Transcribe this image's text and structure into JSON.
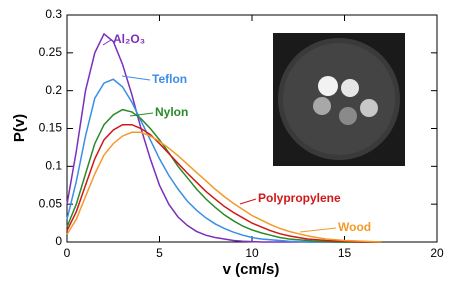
{
  "chart_data": {
    "type": "line",
    "xlabel": "v (cm/s)",
    "ylabel": "P(v)",
    "x": [
      0,
      0.5,
      1,
      1.5,
      2,
      2.5,
      3,
      3.5,
      4,
      4.5,
      5,
      5.5,
      6,
      6.5,
      7,
      7.5,
      8,
      8.5,
      9,
      9.5,
      10,
      10.5,
      11,
      11.5,
      12,
      12.5,
      13,
      13.5,
      14,
      14.5,
      15,
      15.5,
      16,
      16.5,
      17
    ],
    "series": [
      {
        "name": "Al₂O₃",
        "color": "#7b2fbe",
        "values": [
          0.05,
          0.12,
          0.2,
          0.25,
          0.275,
          0.265,
          0.235,
          0.195,
          0.15,
          0.11,
          0.075,
          0.05,
          0.033,
          0.022,
          0.014,
          0.009,
          0.006,
          0.004,
          0.002,
          0.001,
          0.0005,
          0,
          0,
          0,
          0,
          0,
          0,
          0,
          0,
          0,
          0,
          0,
          0,
          0,
          0
        ]
      },
      {
        "name": "Teflon",
        "color": "#3a8ee6",
        "values": [
          0.03,
          0.08,
          0.14,
          0.19,
          0.21,
          0.215,
          0.205,
          0.185,
          0.16,
          0.135,
          0.11,
          0.088,
          0.07,
          0.054,
          0.042,
          0.032,
          0.024,
          0.018,
          0.013,
          0.009,
          0.006,
          0.004,
          0.003,
          0.002,
          0.001,
          0.0005,
          0,
          0,
          0,
          0,
          0,
          0,
          0,
          0,
          0
        ]
      },
      {
        "name": "Nylon",
        "color": "#2a8a2a",
        "values": [
          0.02,
          0.05,
          0.09,
          0.13,
          0.155,
          0.168,
          0.175,
          0.172,
          0.163,
          0.15,
          0.135,
          0.118,
          0.1,
          0.085,
          0.07,
          0.057,
          0.046,
          0.036,
          0.028,
          0.021,
          0.016,
          0.012,
          0.009,
          0.006,
          0.004,
          0.003,
          0.002,
          0.001,
          0.0005,
          0,
          0,
          0,
          0,
          0,
          0
        ]
      },
      {
        "name": "Polypropylene",
        "color": "#d01818",
        "values": [
          0.015,
          0.04,
          0.075,
          0.11,
          0.135,
          0.148,
          0.155,
          0.155,
          0.15,
          0.142,
          0.13,
          0.117,
          0.104,
          0.091,
          0.079,
          0.067,
          0.057,
          0.047,
          0.039,
          0.032,
          0.025,
          0.02,
          0.015,
          0.011,
          0.008,
          0.006,
          0.004,
          0.003,
          0.002,
          0.0015,
          0.001,
          0.0005,
          0,
          0,
          0
        ]
      },
      {
        "name": "Wood",
        "color": "#f39a2a",
        "values": [
          0.01,
          0.03,
          0.06,
          0.09,
          0.115,
          0.13,
          0.14,
          0.145,
          0.145,
          0.14,
          0.133,
          0.124,
          0.114,
          0.103,
          0.092,
          0.081,
          0.07,
          0.06,
          0.051,
          0.043,
          0.035,
          0.029,
          0.023,
          0.018,
          0.014,
          0.011,
          0.008,
          0.006,
          0.004,
          0.003,
          0.002,
          0.0015,
          0.001,
          0.0005,
          0
        ]
      }
    ],
    "xlim": [
      0,
      20
    ],
    "xticks": [
      0,
      5,
      10,
      15,
      20
    ],
    "ylim": [
      0,
      0.3
    ],
    "yticks": [
      0,
      0.05,
      0.1,
      0.15,
      0.2,
      0.25,
      0.3
    ]
  }
}
